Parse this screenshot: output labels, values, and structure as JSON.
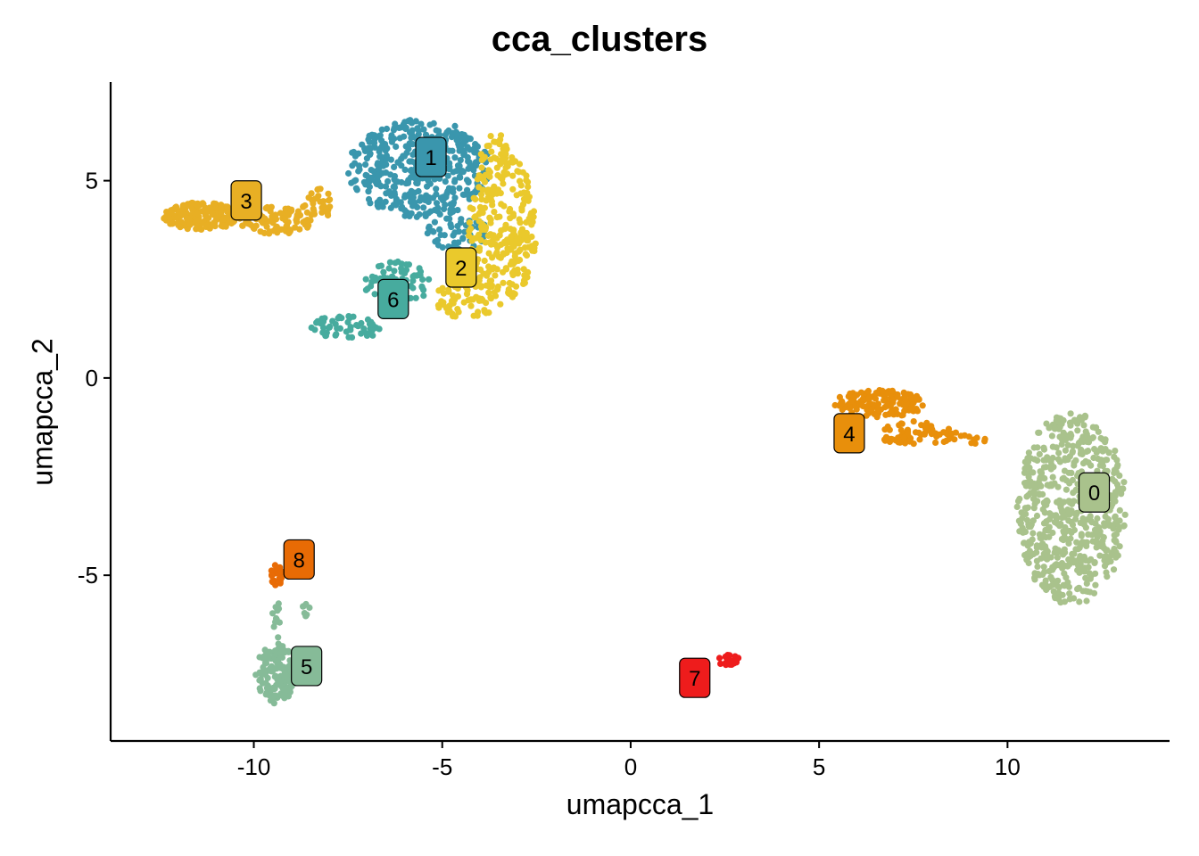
{
  "chart_data": {
    "type": "scatter",
    "title": "cca_clusters",
    "xlabel": "umapcca_1",
    "ylabel": "umapcca_2",
    "xlim": [
      -13.8,
      14.3
    ],
    "ylim": [
      -9.2,
      7.5
    ],
    "xticks": [
      -10,
      -5,
      0,
      5,
      10
    ],
    "xtick_labels": [
      "-10",
      "-5",
      "0",
      "5",
      "10"
    ],
    "yticks": [
      -5,
      0,
      5
    ],
    "ytick_labels": [
      "-5",
      "0",
      "5"
    ],
    "grid": false,
    "legend": "none",
    "clusters": [
      {
        "label": "0",
        "color": "#A9C28C",
        "label_pos": [
          12.3,
          -2.9
        ],
        "regions": [
          {
            "cx": 11.7,
            "cy": -3.3,
            "rx": 1.45,
            "ry": 2.45,
            "n": 620
          }
        ]
      },
      {
        "label": "1",
        "color": "#3A96AD",
        "label_pos": [
          -5.3,
          5.6
        ],
        "regions": [
          {
            "cx": -5.6,
            "cy": 5.3,
            "rx": 1.9,
            "ry": 1.25,
            "n": 430
          },
          {
            "cx": -4.6,
            "cy": 3.7,
            "rx": 0.8,
            "ry": 0.45,
            "n": 50
          }
        ]
      },
      {
        "label": "2",
        "color": "#EAC92C",
        "label_pos": [
          -4.5,
          2.8
        ],
        "regions": [
          {
            "cx": -3.4,
            "cy": 3.8,
            "rx": 0.9,
            "ry": 1.9,
            "n": 260
          },
          {
            "cx": -4.3,
            "cy": 2.0,
            "rx": 0.9,
            "ry": 0.5,
            "n": 70
          },
          {
            "cx": -3.6,
            "cy": 5.6,
            "rx": 0.4,
            "ry": 0.6,
            "n": 30
          }
        ]
      },
      {
        "label": "3",
        "color": "#E8AF24",
        "label_pos": [
          -10.2,
          4.5
        ],
        "regions": [
          {
            "cx": -11.4,
            "cy": 4.1,
            "rx": 1.0,
            "ry": 0.35,
            "n": 190
          },
          {
            "cx": -9.4,
            "cy": 4.0,
            "rx": 1.0,
            "ry": 0.35,
            "n": 90
          },
          {
            "cx": -8.3,
            "cy": 4.4,
            "rx": 0.4,
            "ry": 0.4,
            "n": 30
          }
        ]
      },
      {
        "label": "4",
        "color": "#E88F0B",
        "label_pos": [
          5.8,
          -1.4
        ],
        "regions": [
          {
            "cx": 6.6,
            "cy": -0.65,
            "rx": 1.2,
            "ry": 0.35,
            "n": 150
          },
          {
            "cx": 7.6,
            "cy": -1.4,
            "rx": 1.1,
            "ry": 0.3,
            "n": 70
          },
          {
            "cx": 9.0,
            "cy": -1.55,
            "rx": 0.5,
            "ry": 0.12,
            "n": 10
          }
        ]
      },
      {
        "label": "5",
        "color": "#86BB98",
        "label_pos": [
          -8.6,
          -7.3
        ],
        "regions": [
          {
            "cx": -9.4,
            "cy": -7.5,
            "rx": 0.55,
            "ry": 0.75,
            "n": 150
          },
          {
            "cx": -9.4,
            "cy": -6.2,
            "rx": 0.12,
            "ry": 0.7,
            "n": 12
          },
          {
            "cx": -8.6,
            "cy": -5.9,
            "rx": 0.12,
            "ry": 0.2,
            "n": 8
          }
        ]
      },
      {
        "label": "6",
        "color": "#47AB9E",
        "label_pos": [
          -6.3,
          2.0
        ],
        "regions": [
          {
            "cx": -6.2,
            "cy": 2.4,
            "rx": 0.9,
            "ry": 0.55,
            "n": 70
          },
          {
            "cx": -7.5,
            "cy": 1.3,
            "rx": 1.0,
            "ry": 0.3,
            "n": 60
          }
        ]
      },
      {
        "label": "7",
        "color": "#EE1C1C",
        "label_pos": [
          1.7,
          -7.6
        ],
        "regions": [
          {
            "cx": 2.6,
            "cy": -7.15,
            "rx": 0.3,
            "ry": 0.15,
            "n": 30
          }
        ]
      },
      {
        "label": "8",
        "color": "#E86B05",
        "label_pos": [
          -8.8,
          -4.6
        ],
        "regions": [
          {
            "cx": -9.4,
            "cy": -5.0,
            "rx": 0.15,
            "ry": 0.3,
            "n": 25
          }
        ]
      }
    ]
  }
}
